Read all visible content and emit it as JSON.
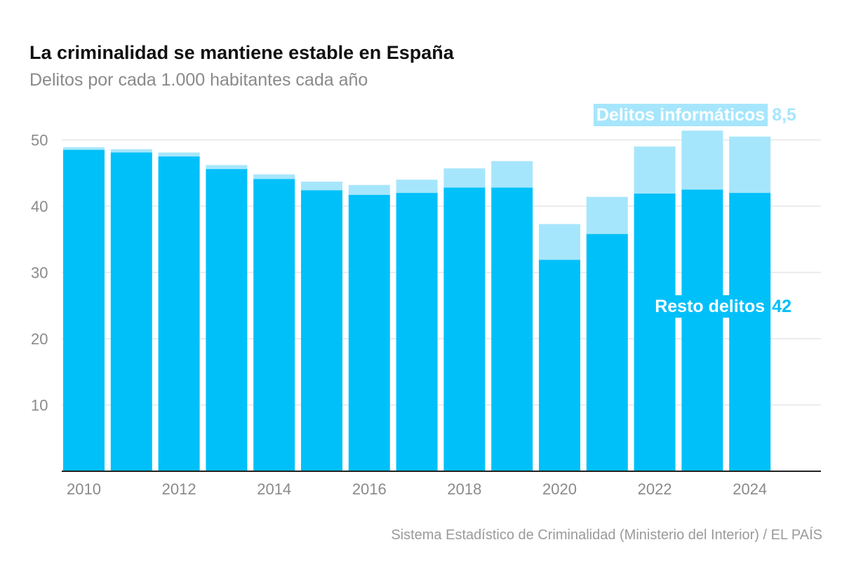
{
  "title": "La criminalidad se mantiene estable en España",
  "subtitle": "Delitos por cada 1.000 habitantes cada año",
  "source": "Sistema Estadístico de Criminalidad (Ministerio del Interior) / EL PAÍS",
  "colors": {
    "resto": "#00c0fa",
    "informaticos": "#a6e6fc",
    "grid": "#e6e6e6",
    "axis": "#222222",
    "tick_text": "#8a8a8a"
  },
  "chart_data": {
    "type": "bar",
    "stacked": true,
    "categories": [
      "2010",
      "2011",
      "2012",
      "2013",
      "2014",
      "2015",
      "2016",
      "2017",
      "2018",
      "2019",
      "2020",
      "2021",
      "2022",
      "2023",
      "2024"
    ],
    "x_tick_labels": [
      "2010",
      "",
      "2012",
      "",
      "2014",
      "",
      "2016",
      "",
      "2018",
      "",
      "2020",
      "",
      "2022",
      "",
      "2024"
    ],
    "series": [
      {
        "name": "Resto delitos",
        "color": "#00c0fa",
        "values": [
          48.5,
          48.1,
          47.5,
          45.6,
          44.1,
          42.4,
          41.7,
          42.0,
          42.8,
          42.8,
          31.9,
          35.8,
          41.9,
          42.5,
          42.0
        ]
      },
      {
        "name": "Delitos informáticos",
        "color": "#a6e6fc",
        "values": [
          0.4,
          0.5,
          0.6,
          0.6,
          0.7,
          1.3,
          1.5,
          2.0,
          2.9,
          4.0,
          5.4,
          5.6,
          7.1,
          8.9,
          8.5
        ]
      }
    ],
    "annotations": [
      {
        "label": "Delitos informáticos",
        "value": "8,5",
        "series": "Delitos informáticos"
      },
      {
        "label": "Resto delitos",
        "value": "42",
        "series": "Resto delitos"
      }
    ],
    "yticks": [
      "10",
      "20",
      "30",
      "40",
      "50"
    ],
    "ylim": [
      0,
      52
    ],
    "grid": true,
    "title": "La criminalidad se mantiene estable en España",
    "subtitle": "Delitos por cada 1.000 habitantes cada año",
    "xlabel": "",
    "ylabel": ""
  }
}
